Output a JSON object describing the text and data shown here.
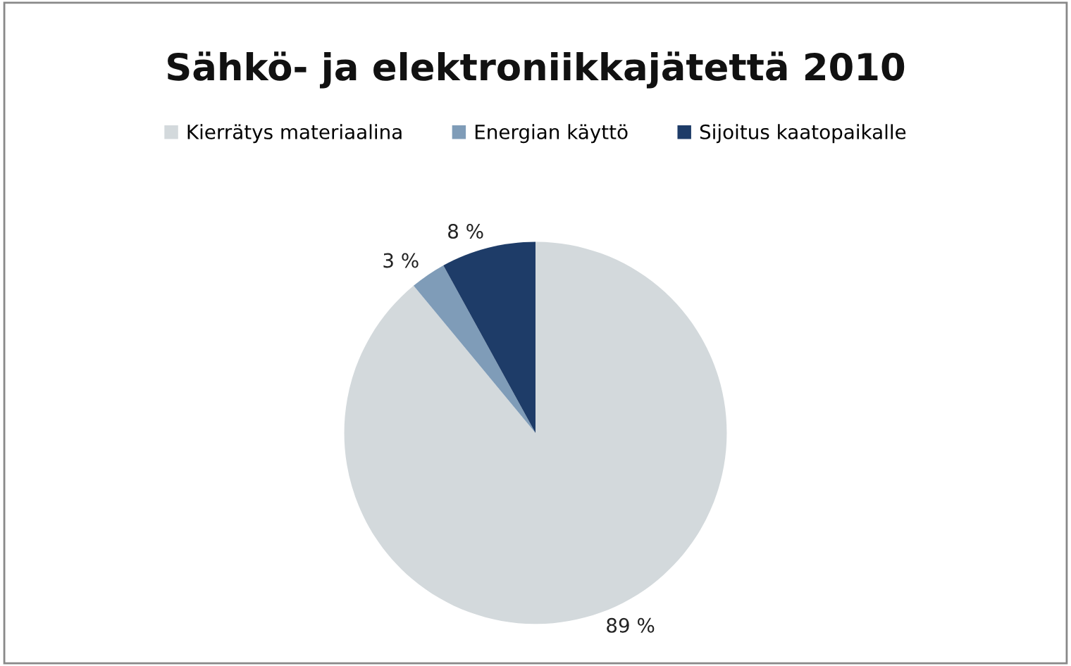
{
  "chart_data": {
    "type": "pie",
    "title": "Sähkö- ja elektroniikkajätettä 2010",
    "categories": [
      "Kierrätys materiaalina",
      "Energian käyttö",
      "Sijoitus kaatopaikalle"
    ],
    "values": [
      89,
      3,
      8
    ],
    "colors": [
      "#d3d9dc",
      "#7f9cb8",
      "#1e3c68"
    ],
    "value_labels": [
      "89 %",
      "3 %",
      "8 %"
    ],
    "legend": "top"
  }
}
